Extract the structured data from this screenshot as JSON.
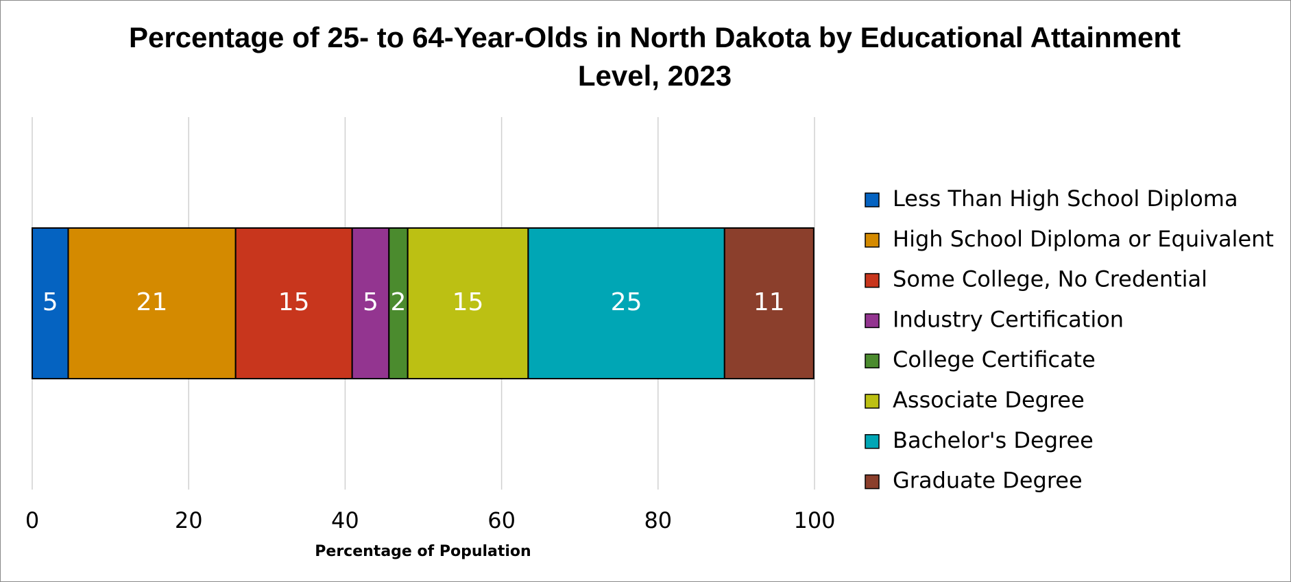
{
  "chart_data": {
    "type": "stacked-bar-horizontal",
    "title": "Percentage of 25- to 64-Year-Olds in North Dakota by Educational Attainment Level, 2023",
    "xlabel": "Percentage of Population",
    "xlim": [
      0,
      100
    ],
    "xticks": [
      0,
      20,
      40,
      60,
      80,
      100
    ],
    "grid": true,
    "legend": "right",
    "series": [
      {
        "name": "Less Than High School Diploma",
        "color": "#0563c1",
        "values": [
          4.6
        ],
        "value_labels": [
          "5"
        ]
      },
      {
        "name": "High School Diploma or Equivalent",
        "color": "#d48a00",
        "values": [
          21.4
        ],
        "value_labels": [
          "21"
        ]
      },
      {
        "name": "Some College, No Credential",
        "color": "#c8361d",
        "values": [
          14.9
        ],
        "value_labels": [
          "15"
        ]
      },
      {
        "name": "Industry Certification",
        "color": "#933590",
        "values": [
          4.7
        ],
        "value_labels": [
          "5"
        ]
      },
      {
        "name": "College Certificate",
        "color": "#4b8b2e",
        "values": [
          2.4
        ],
        "value_labels": [
          "2"
        ]
      },
      {
        "name": "Associate Degree",
        "color": "#bcc013",
        "values": [
          15.4
        ],
        "value_labels": [
          "15"
        ]
      },
      {
        "name": "Bachelor's Degree",
        "color": "#00a6b5",
        "values": [
          25.1
        ],
        "value_labels": [
          "25"
        ]
      },
      {
        "name": "Graduate Degree",
        "color": "#8b3f2c",
        "values": [
          11.4
        ],
        "value_labels": [
          "11"
        ]
      }
    ]
  }
}
